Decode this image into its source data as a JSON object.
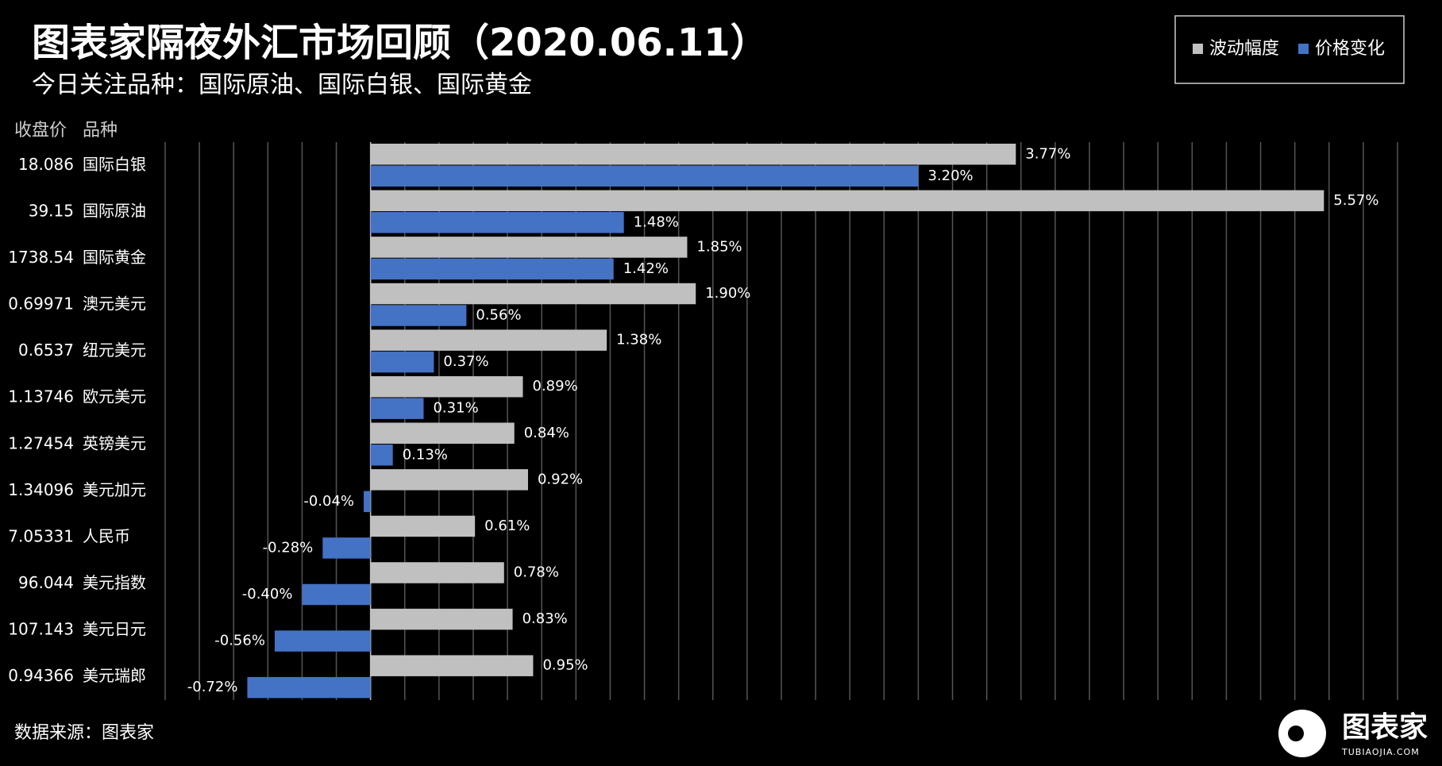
{
  "chart_data": {
    "type": "bar",
    "orientation": "horizontal",
    "title": "图表家隔夜外汇市场回顾（2020.06.11）",
    "subtitle": "今日关注品种：国际原油、国际白银、国际黄金",
    "column_headers": [
      "收盘价",
      "品种"
    ],
    "closes": [
      "18.086",
      "39.15",
      "1738.54",
      "0.69971",
      "0.6537",
      "1.13746",
      "1.27454",
      "1.34096",
      "7.05331",
      "96.044",
      "107.143",
      "0.94366"
    ],
    "categories": [
      "国际白银",
      "国际原油",
      "国际黄金",
      "澳元美元",
      "纽元美元",
      "欧元美元",
      "英镑美元",
      "美元加元",
      "人民币",
      "美元指数",
      "美元日元",
      "美元瑞郎"
    ],
    "series": [
      {
        "name": "波动幅度",
        "color": "#c0c0c0",
        "values": [
          3.77,
          5.57,
          1.85,
          1.9,
          1.38,
          0.89,
          0.84,
          0.92,
          0.61,
          0.78,
          0.83,
          0.95
        ],
        "value_labels": [
          "3.77%",
          "5.57%",
          "1.85%",
          "1.90%",
          "1.38%",
          "0.89%",
          "0.84%",
          "0.92%",
          "0.61%",
          "0.78%",
          "0.83%",
          "0.95%"
        ]
      },
      {
        "name": "价格变化",
        "color": "#4472c4",
        "values": [
          3.2,
          1.48,
          1.42,
          0.56,
          0.37,
          0.31,
          0.13,
          -0.04,
          -0.28,
          -0.4,
          -0.56,
          -0.72
        ],
        "value_labels": [
          "3.20%",
          "1.48%",
          "1.42%",
          "0.56%",
          "0.37%",
          "0.31%",
          "0.13%",
          "-0.04%",
          "-0.28%",
          "-0.40%",
          "-0.56%",
          "-0.72%"
        ]
      }
    ],
    "xlim": [
      -1.2,
      6.0
    ],
    "xticks": [
      -1.2,
      -1.0,
      -0.8,
      -0.6,
      -0.4,
      -0.2,
      0,
      0.2,
      0.4,
      0.6,
      0.8,
      1.0,
      1.2,
      1.4,
      1.6,
      1.8,
      2.0,
      2.2,
      2.4,
      2.6,
      2.8,
      3.0,
      3.2,
      3.4,
      3.6,
      3.8,
      4.0,
      4.2,
      4.4,
      4.6,
      4.8,
      5.0,
      5.2,
      5.4,
      5.6,
      5.8,
      6.0
    ],
    "grid": true,
    "legend": "upper right",
    "source": "数据来源：图表家",
    "logo": {
      "name": "图表家",
      "url": "TUBIAOJIA.COM"
    }
  }
}
